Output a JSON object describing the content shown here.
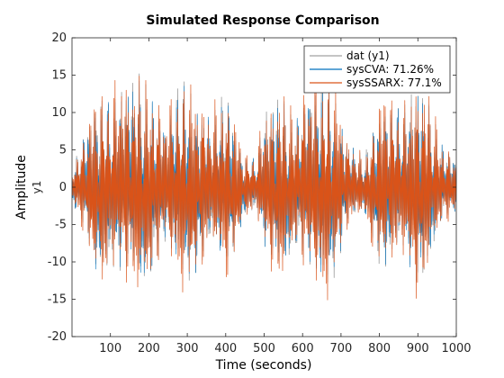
{
  "chart_data": {
    "type": "line",
    "title": "Simulated Response Comparison",
    "xlabel": "Time (seconds)",
    "ylabel": "Amplitude",
    "channel_label": "y1",
    "xlim": [
      0,
      1000
    ],
    "ylim": [
      -20,
      20
    ],
    "xticks": [
      100,
      200,
      300,
      400,
      500,
      600,
      700,
      800,
      900,
      1000
    ],
    "yticks": [
      -20,
      -15,
      -10,
      -5,
      0,
      5,
      10,
      15,
      20
    ],
    "grid": false,
    "legend_position": "top-right",
    "series": [
      {
        "name": "dat (y1)",
        "color": "#a0a0a0",
        "stroke": "#8c8c8c"
      },
      {
        "name": "sysCVA: 71.26%",
        "color": "#0072bd"
      },
      {
        "name": "sysSSARX: 77.1%",
        "color": "#d95319"
      }
    ],
    "envelope_knots": {
      "t": [
        0,
        20,
        40,
        60,
        80,
        100,
        130,
        160,
        180,
        200,
        220,
        240,
        260,
        280,
        300,
        320,
        340,
        360,
        380,
        400,
        420,
        440,
        460,
        480,
        500,
        520,
        540,
        560,
        580,
        600,
        620,
        640,
        660,
        680,
        700,
        720,
        740,
        760,
        780,
        800,
        820,
        840,
        860,
        880,
        900,
        920,
        940,
        960,
        980,
        1000
      ],
      "amplitude": [
        3,
        5,
        9,
        13,
        14,
        12,
        14,
        15,
        16,
        14,
        12,
        9,
        12,
        14,
        15,
        13,
        12,
        9,
        11,
        13,
        11,
        6,
        4,
        4,
        10,
        12,
        14,
        12,
        9,
        12,
        14,
        15,
        16,
        14,
        10,
        6,
        5,
        4,
        8,
        12,
        13,
        11,
        10,
        13,
        16,
        14,
        10,
        6,
        5,
        4
      ]
    }
  }
}
